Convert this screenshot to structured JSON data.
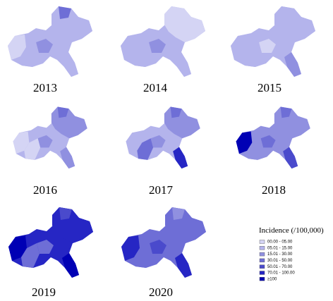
{
  "years": [
    "2013",
    "2014",
    "2015",
    "2016",
    "2017",
    "2018",
    "2019",
    "2020"
  ],
  "legend": {
    "title": "Incidence (/100,000)",
    "items": [
      {
        "label": "00.00 - 05.00",
        "color": "#d4d4f4"
      },
      {
        "label": "05.01 - 15.00",
        "color": "#b4b4ec"
      },
      {
        "label": "15.01 - 30.00",
        "color": "#9090e0"
      },
      {
        "label": "30.01 - 50.00",
        "color": "#6e6ed6"
      },
      {
        "label": "50.01 - 70.00",
        "color": "#4a4acc"
      },
      {
        "label": "70.01 - 100.00",
        "color": "#2626c4"
      },
      {
        "label": "≥100",
        "color": "#0000b4"
      }
    ]
  }
}
